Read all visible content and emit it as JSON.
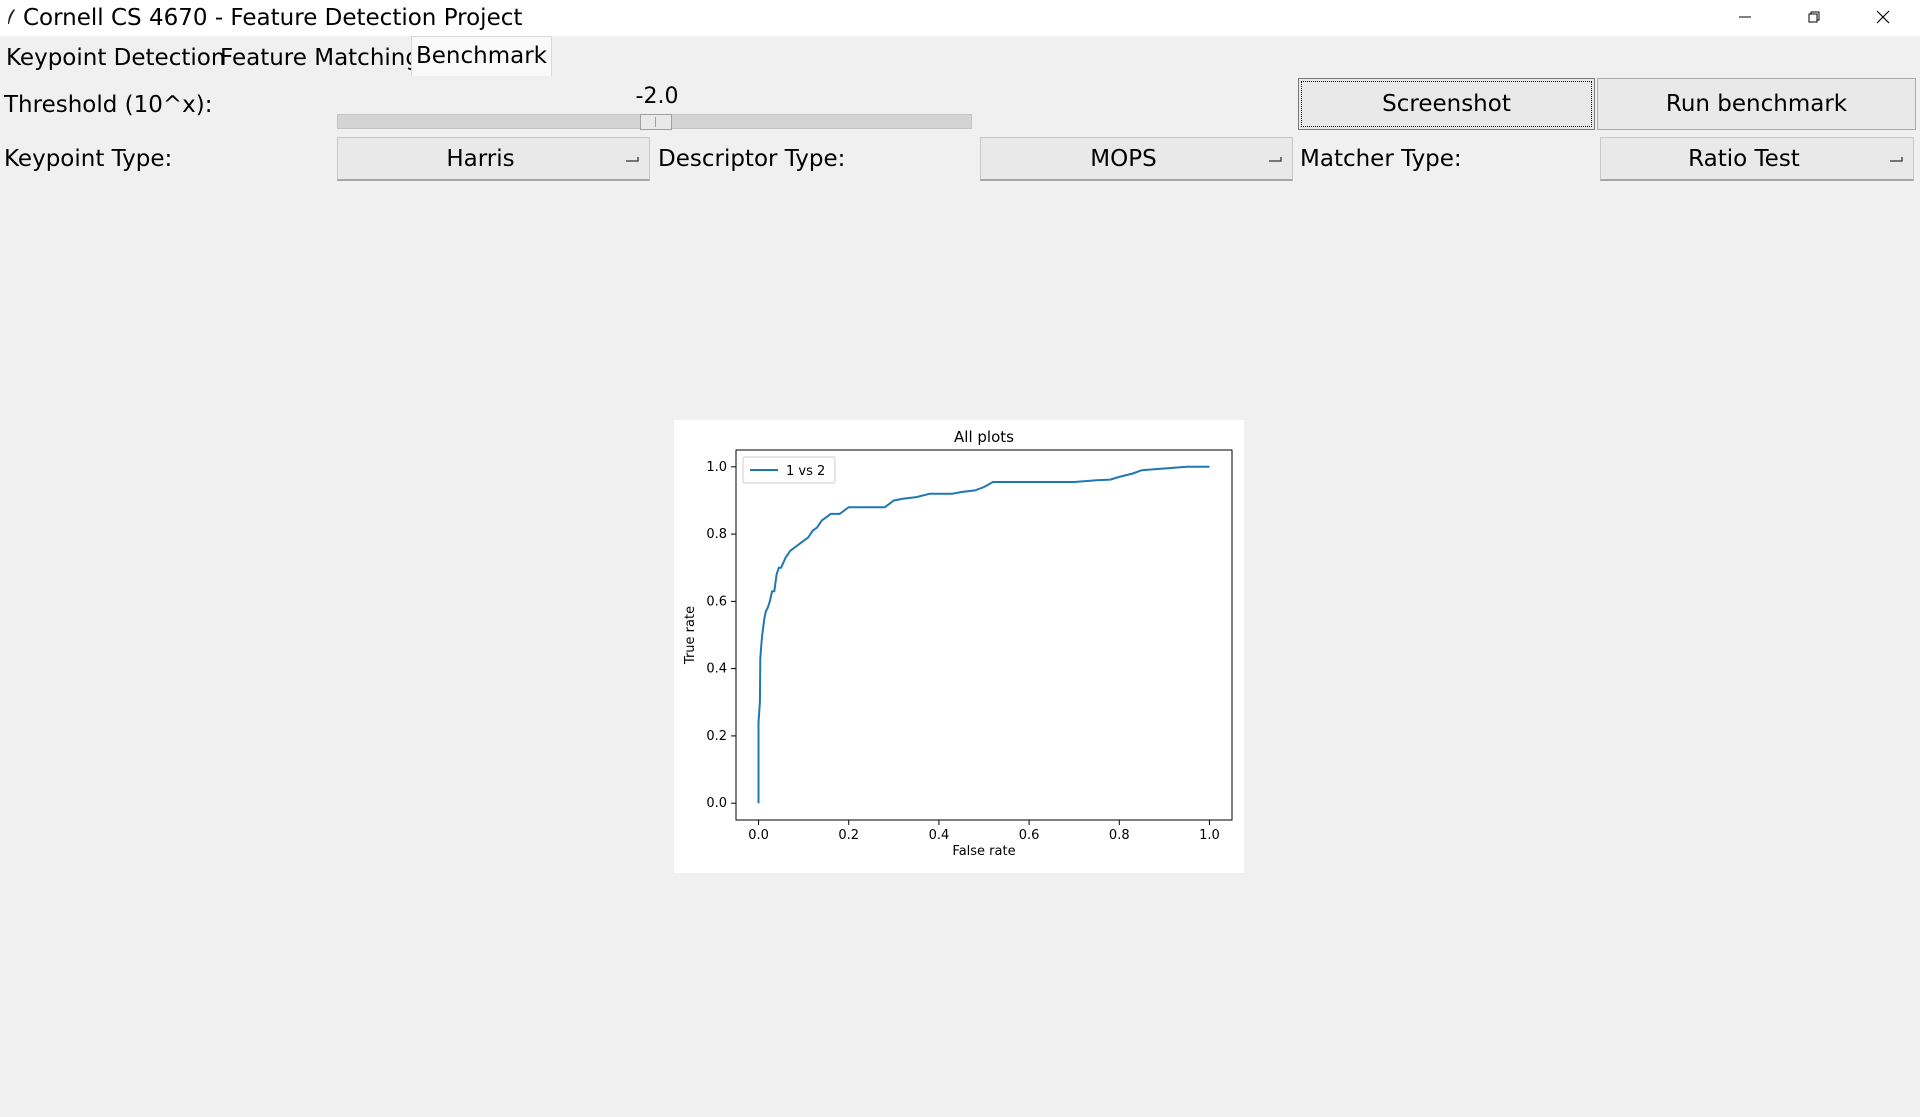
{
  "window": {
    "title": "Cornell CS 4670 - Feature Detection Project",
    "controls": [
      "minimize",
      "restore",
      "close"
    ]
  },
  "tabs": [
    {
      "label": "Keypoint Detection",
      "active": false
    },
    {
      "label": "Feature Matching",
      "active": false
    },
    {
      "label": "Benchmark",
      "active": true
    }
  ],
  "threshold": {
    "label": "Threshold (10^x):",
    "value_text": "-2.0"
  },
  "buttons": {
    "screenshot": "Screenshot",
    "run_benchmark": "Run benchmark"
  },
  "keypoint": {
    "label": "Keypoint Type:",
    "selected": "Harris"
  },
  "descriptor": {
    "label": "Descriptor Type:",
    "selected": "MOPS"
  },
  "matcher": {
    "label": "Matcher Type:",
    "selected": "Ratio Test"
  },
  "colors": {
    "series": "#1f77b4",
    "background": "#f0f0f0"
  },
  "chart_data": {
    "type": "line",
    "title": "All plots",
    "xlabel": "False rate",
    "ylabel": "True rate",
    "xlim": [
      -0.05,
      1.05
    ],
    "ylim": [
      -0.05,
      1.05
    ],
    "xticks": [
      0.0,
      0.2,
      0.4,
      0.6,
      0.8,
      1.0
    ],
    "yticks": [
      0.0,
      0.2,
      0.4,
      0.6,
      0.8,
      1.0
    ],
    "xtick_labels": [
      "0.0",
      "0.2",
      "0.4",
      "0.6",
      "0.8",
      "1.0"
    ],
    "ytick_labels": [
      "0.0",
      "0.2",
      "0.4",
      "0.6",
      "0.8",
      "1.0"
    ],
    "legend": "top-left",
    "grid": false,
    "series": [
      {
        "name": "1 vs 2",
        "x": [
          0.0,
          0.0,
          0.002,
          0.003,
          0.004,
          0.006,
          0.008,
          0.01,
          0.013,
          0.016,
          0.02,
          0.025,
          0.03,
          0.035,
          0.04,
          0.045,
          0.05,
          0.06,
          0.065,
          0.07,
          0.08,
          0.09,
          0.1,
          0.11,
          0.12,
          0.13,
          0.14,
          0.15,
          0.16,
          0.17,
          0.18,
          0.2,
          0.22,
          0.25,
          0.28,
          0.3,
          0.32,
          0.35,
          0.38,
          0.4,
          0.43,
          0.45,
          0.48,
          0.5,
          0.52,
          0.55,
          0.6,
          0.65,
          0.7,
          0.75,
          0.78,
          0.8,
          0.83,
          0.85,
          0.9,
          0.95,
          1.0
        ],
        "y": [
          0.0,
          0.24,
          0.28,
          0.3,
          0.43,
          0.47,
          0.5,
          0.52,
          0.55,
          0.57,
          0.58,
          0.6,
          0.63,
          0.63,
          0.68,
          0.7,
          0.7,
          0.73,
          0.74,
          0.75,
          0.76,
          0.77,
          0.78,
          0.79,
          0.81,
          0.82,
          0.84,
          0.85,
          0.86,
          0.86,
          0.86,
          0.88,
          0.88,
          0.88,
          0.88,
          0.9,
          0.905,
          0.91,
          0.92,
          0.92,
          0.92,
          0.925,
          0.93,
          0.94,
          0.955,
          0.955,
          0.955,
          0.955,
          0.955,
          0.96,
          0.962,
          0.97,
          0.98,
          0.99,
          0.995,
          1.0,
          1.0
        ]
      }
    ]
  }
}
